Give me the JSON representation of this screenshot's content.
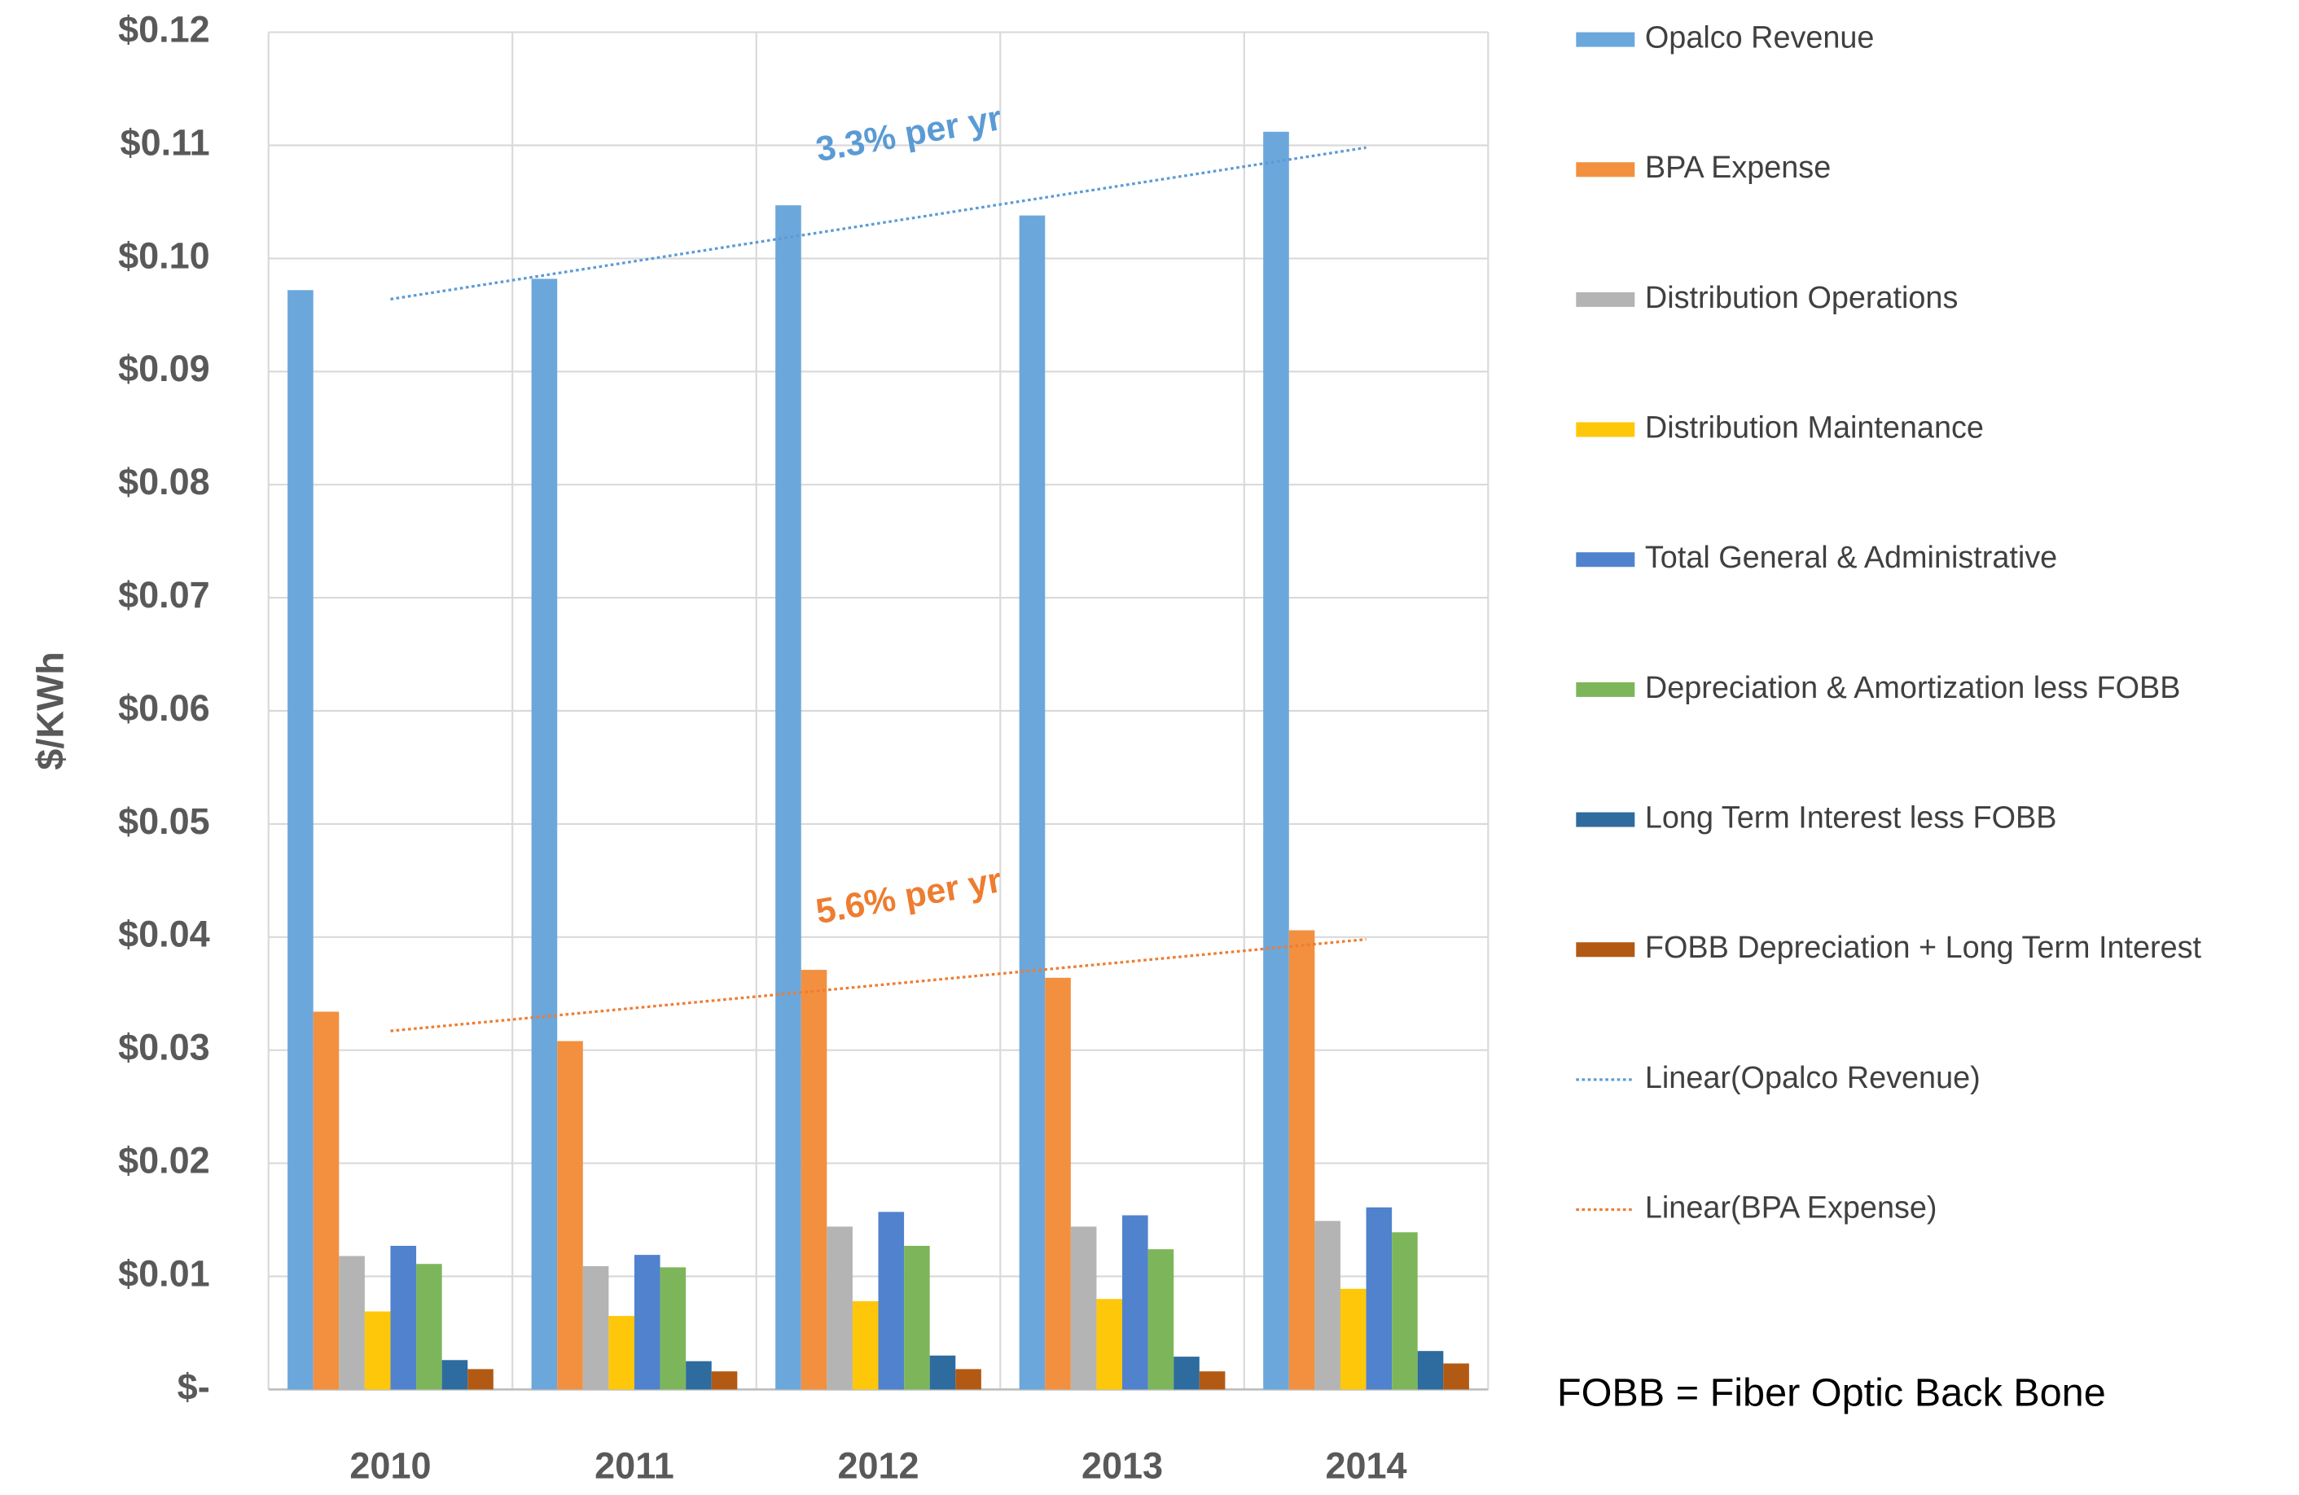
{
  "chart_data": {
    "type": "bar",
    "y_label": "$/KWh",
    "categories": [
      "2010",
      "2011",
      "2012",
      "2013",
      "2014"
    ],
    "series": [
      {
        "name": "Opalco Revenue",
        "color": "#6BA7DB",
        "values": [
          0.0972,
          0.0982,
          0.1047,
          0.1038,
          0.1112
        ]
      },
      {
        "name": "BPA Expense",
        "color": "#F2903F",
        "values": [
          0.0334,
          0.0308,
          0.0371,
          0.0364,
          0.0406
        ]
      },
      {
        "name": "Distribution Operations",
        "color": "#B4B4B4",
        "values": [
          0.0118,
          0.0109,
          0.0144,
          0.0144,
          0.0149
        ]
      },
      {
        "name": "Distribution Maintenance",
        "color": "#FFC709",
        "values": [
          0.0069,
          0.0065,
          0.0078,
          0.008,
          0.0089
        ]
      },
      {
        "name": "Total General & Administrative",
        "color": "#5082CD",
        "values": [
          0.0127,
          0.0119,
          0.0157,
          0.0154,
          0.0161
        ]
      },
      {
        "name": "Depreciation & Amortization less FOBB",
        "color": "#7DB65A",
        "values": [
          0.0111,
          0.0108,
          0.0127,
          0.0124,
          0.0139
        ]
      },
      {
        "name": "Long Term Interest less FOBB",
        "color": "#2E6B9E",
        "values": [
          0.0026,
          0.0025,
          0.003,
          0.0029,
          0.0034
        ]
      },
      {
        "name": "FOBB Depreciation + Long Term Interest",
        "color": "#B25A14",
        "values": [
          0.0018,
          0.0016,
          0.0018,
          0.0016,
          0.0023
        ]
      }
    ],
    "trendlines": [
      {
        "name": "Linear(Opalco Revenue)",
        "color": "#5B9BD5",
        "values": [
          0.0964,
          0.1098
        ]
      },
      {
        "name": "Linear(BPA Expense)",
        "color": "#ED7D31",
        "values": [
          0.0317,
          0.0398
        ]
      }
    ],
    "annotations": [
      {
        "text": "3.3% per yr",
        "color": "#5B9BD5"
      },
      {
        "text": "5.6% per yr",
        "color": "#ED7D31"
      }
    ],
    "note": "FOBB = Fiber Optic Back Bone",
    "ylim": [
      0,
      0.12
    ],
    "yticks": [
      {
        "value": 0,
        "label": "$-"
      },
      {
        "value": 0.01,
        "label": "$0.01"
      },
      {
        "value": 0.02,
        "label": "$0.02"
      },
      {
        "value": 0.03,
        "label": "$0.03"
      },
      {
        "value": 0.04,
        "label": "$0.04"
      },
      {
        "value": 0.05,
        "label": "$0.05"
      },
      {
        "value": 0.06,
        "label": "$0.06"
      },
      {
        "value": 0.07,
        "label": "$0.07"
      },
      {
        "value": 0.08,
        "label": "$0.08"
      },
      {
        "value": 0.09,
        "label": "$0.09"
      },
      {
        "value": 0.1,
        "label": "$0.10"
      },
      {
        "value": 0.11,
        "label": "$0.11"
      },
      {
        "value": 0.12,
        "label": "$0.12"
      }
    ],
    "grid": true,
    "legend": "right"
  }
}
